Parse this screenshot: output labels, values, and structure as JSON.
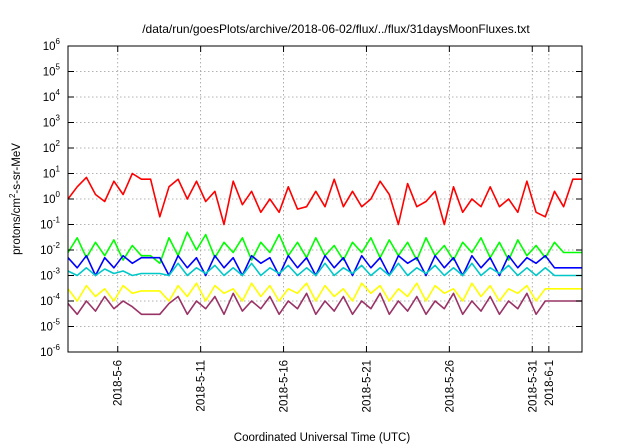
{
  "chart_data": {
    "type": "line",
    "title": "/data/run/goesPlots/archive/2018-06-02/flux/../flux/31daysMoonFluxes.txt",
    "xlabel": "Coordinated Universal Time (UTC)",
    "ylabel_parts": [
      "protons/cm",
      "2",
      "-s-sr-MeV"
    ],
    "y_scale": "log",
    "ylim": [
      1e-06,
      1000000.0
    ],
    "y_ticks": [
      {
        "base": "10",
        "exp": "-6",
        "value": 1e-06
      },
      {
        "base": "10",
        "exp": "-5",
        "value": 1e-05
      },
      {
        "base": "10",
        "exp": "-4",
        "value": 0.0001
      },
      {
        "base": "10",
        "exp": "-3",
        "value": 0.001
      },
      {
        "base": "10",
        "exp": "-2",
        "value": 0.01
      },
      {
        "base": "10",
        "exp": "-1",
        "value": 0.1
      },
      {
        "base": "10",
        "exp": "0",
        "value": 1
      },
      {
        "base": "10",
        "exp": "1",
        "value": 10
      },
      {
        "base": "10",
        "exp": "2",
        "value": 100
      },
      {
        "base": "10",
        "exp": "3",
        "value": 1000
      },
      {
        "base": "10",
        "exp": "4",
        "value": 10000
      },
      {
        "base": "10",
        "exp": "5",
        "value": 100000
      },
      {
        "base": "10",
        "exp": "6",
        "value": 1000000
      }
    ],
    "xlim_days": [
      "2018-05-03",
      "2018-06-03"
    ],
    "x_ticks": [
      {
        "label": "2018-5-6",
        "date": "2018-05-06"
      },
      {
        "label": "2018-5-11",
        "date": "2018-05-11"
      },
      {
        "label": "2018-5-16",
        "date": "2018-05-16"
      },
      {
        "label": "2018-5-21",
        "date": "2018-05-21"
      },
      {
        "label": "2018-5-26",
        "date": "2018-05-26"
      },
      {
        "label": "2018-5-31",
        "date": "2018-05-31"
      },
      {
        "label": "2018-6-1",
        "date": "2018-06-01"
      }
    ],
    "grid": true,
    "legend": "none",
    "series": [
      {
        "color": "#ff0000",
        "level_values": [
          1.0,
          3.0,
          7.0,
          1.5,
          0.8,
          5.0,
          1.5,
          10.0,
          6.0,
          6.0,
          0.2,
          3.0,
          6.0,
          1.0,
          5.0,
          0.8,
          2.0,
          0.1,
          5.0,
          0.6,
          2.0,
          0.3,
          1.0,
          0.3,
          3.0,
          0.4,
          0.5,
          2.0,
          0.5,
          6.0,
          0.5,
          2.0,
          0.5,
          1.0,
          5.0,
          1.5,
          0.1,
          4.0,
          0.5,
          0.8,
          2.0,
          0.1,
          3.0,
          0.3,
          1.0,
          0.5,
          3.0,
          0.5,
          1.0,
          0.3,
          5.0,
          0.3,
          0.2,
          2.0,
          0.5,
          6.0,
          6.0
        ]
      },
      {
        "color": "#00ff00",
        "level_values": [
          0.008,
          0.03,
          0.005,
          0.02,
          0.006,
          0.025,
          0.004,
          0.015,
          0.006,
          0.006,
          0.003,
          0.03,
          0.006,
          0.05,
          0.01,
          0.04,
          0.005,
          0.02,
          0.008,
          0.03,
          0.004,
          0.02,
          0.008,
          0.04,
          0.006,
          0.02,
          0.005,
          0.03,
          0.006,
          0.015,
          0.004,
          0.02,
          0.008,
          0.03,
          0.005,
          0.025,
          0.006,
          0.02,
          0.004,
          0.03,
          0.006,
          0.015,
          0.004,
          0.02,
          0.008,
          0.03,
          0.005,
          0.02,
          0.004,
          0.025,
          0.006,
          0.015,
          0.005,
          0.02,
          0.008,
          0.008,
          0.008
        ]
      },
      {
        "color": "#0000ff",
        "level_values": [
          0.005,
          0.002,
          0.006,
          0.001,
          0.005,
          0.002,
          0.006,
          0.003,
          0.005,
          0.005,
          0.005,
          0.001,
          0.006,
          0.002,
          0.005,
          0.001,
          0.006,
          0.002,
          0.005,
          0.001,
          0.006,
          0.003,
          0.005,
          0.001,
          0.006,
          0.002,
          0.005,
          0.001,
          0.006,
          0.002,
          0.005,
          0.001,
          0.006,
          0.002,
          0.005,
          0.001,
          0.006,
          0.003,
          0.005,
          0.001,
          0.006,
          0.002,
          0.005,
          0.001,
          0.006,
          0.002,
          0.005,
          0.001,
          0.006,
          0.002,
          0.005,
          0.003,
          0.006,
          0.002,
          0.002,
          0.002,
          0.002
        ]
      },
      {
        "color": "#00c8c8",
        "level_values": [
          0.0015,
          0.001,
          0.002,
          0.001,
          0.0018,
          0.0012,
          0.0015,
          0.001,
          0.0012,
          0.0012,
          0.0012,
          0.001,
          0.003,
          0.001,
          0.002,
          0.0012,
          0.0025,
          0.001,
          0.002,
          0.001,
          0.003,
          0.001,
          0.002,
          0.0012,
          0.0025,
          0.001,
          0.002,
          0.001,
          0.003,
          0.001,
          0.002,
          0.0012,
          0.0025,
          0.001,
          0.002,
          0.001,
          0.003,
          0.001,
          0.002,
          0.0012,
          0.0025,
          0.001,
          0.002,
          0.001,
          0.003,
          0.001,
          0.002,
          0.0012,
          0.0025,
          0.001,
          0.002,
          0.001,
          0.002,
          0.001,
          0.001,
          0.001,
          0.001
        ]
      },
      {
        "color": "#ffff00",
        "level_values": [
          0.0003,
          0.0001,
          0.0004,
          0.00015,
          0.0003,
          0.0001,
          0.0004,
          0.0002,
          0.00025,
          0.00025,
          0.00025,
          0.0001,
          0.0004,
          0.00015,
          0.0005,
          0.0001,
          0.0004,
          0.0002,
          0.0003,
          0.0001,
          0.0005,
          0.00015,
          0.0004,
          0.0001,
          0.0003,
          0.0002,
          0.0005,
          0.0001,
          0.0004,
          0.00015,
          0.0003,
          0.0001,
          0.0005,
          0.0002,
          0.0004,
          0.0001,
          0.0003,
          0.00015,
          0.0005,
          0.0001,
          0.0004,
          0.0002,
          0.0003,
          0.0001,
          0.0005,
          0.00015,
          0.0004,
          0.0001,
          0.0003,
          0.0002,
          0.0004,
          0.0001,
          0.0003,
          0.0003,
          0.0003,
          0.0003,
          0.0003
        ]
      },
      {
        "color": "#993366",
        "level_values": [
          8e-05,
          3e-05,
          0.0001,
          4e-05,
          0.00015,
          5e-05,
          0.0001,
          6e-05,
          3e-05,
          3e-05,
          3e-05,
          8e-05,
          0.00015,
          3e-05,
          0.0001,
          5e-05,
          0.00015,
          3e-05,
          0.0002,
          4e-05,
          0.0001,
          5e-05,
          0.00015,
          3e-05,
          0.0001,
          5e-05,
          0.0002,
          3e-05,
          0.0001,
          4e-05,
          0.00015,
          3e-05,
          0.0001,
          5e-05,
          0.0002,
          3e-05,
          0.0001,
          4e-05,
          0.00015,
          3e-05,
          0.0001,
          5e-05,
          0.0002,
          3e-05,
          0.0001,
          4e-05,
          0.00015,
          3e-05,
          0.0001,
          5e-05,
          0.0002,
          3e-05,
          0.0001,
          0.0001,
          0.0001,
          0.0001,
          0.0001
        ]
      }
    ]
  }
}
